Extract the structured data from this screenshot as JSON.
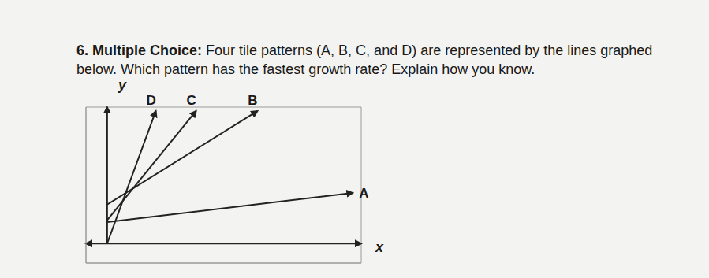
{
  "question": {
    "number": "6.",
    "label": "Multiple Choice:",
    "text_lines": [
      "Four tile patterns (A, B, C, and D) are represented by the lines graphed",
      "below. Which pattern has the fastest growth rate? Explain how you know."
    ]
  },
  "chart_data": {
    "type": "line",
    "x_label": "x",
    "y_label": "y",
    "xlim": [
      -1,
      12
    ],
    "ylim": [
      -1,
      7
    ],
    "xticks": [
      -1,
      0,
      1,
      2,
      3,
      4,
      5,
      6,
      7,
      8,
      9,
      10,
      11,
      12
    ],
    "yticks": [
      -1,
      0,
      1,
      2,
      3,
      4,
      5,
      6,
      7
    ],
    "grid": true,
    "tick_labels": false,
    "series": [
      {
        "name": "A",
        "color": "#222222",
        "x": [
          0,
          11.6
        ],
        "values": [
          1.1,
          2.6
        ]
      },
      {
        "name": "B",
        "color": "#222222",
        "x": [
          0,
          7.1
        ],
        "values": [
          2,
          6.8
        ]
      },
      {
        "name": "C",
        "color": "#222222",
        "x": [
          0,
          4.2
        ],
        "values": [
          1.2,
          6.8
        ]
      },
      {
        "name": "D",
        "color": "#222222",
        "x": [
          0,
          2.3
        ],
        "values": [
          0,
          6.8
        ]
      }
    ]
  }
}
